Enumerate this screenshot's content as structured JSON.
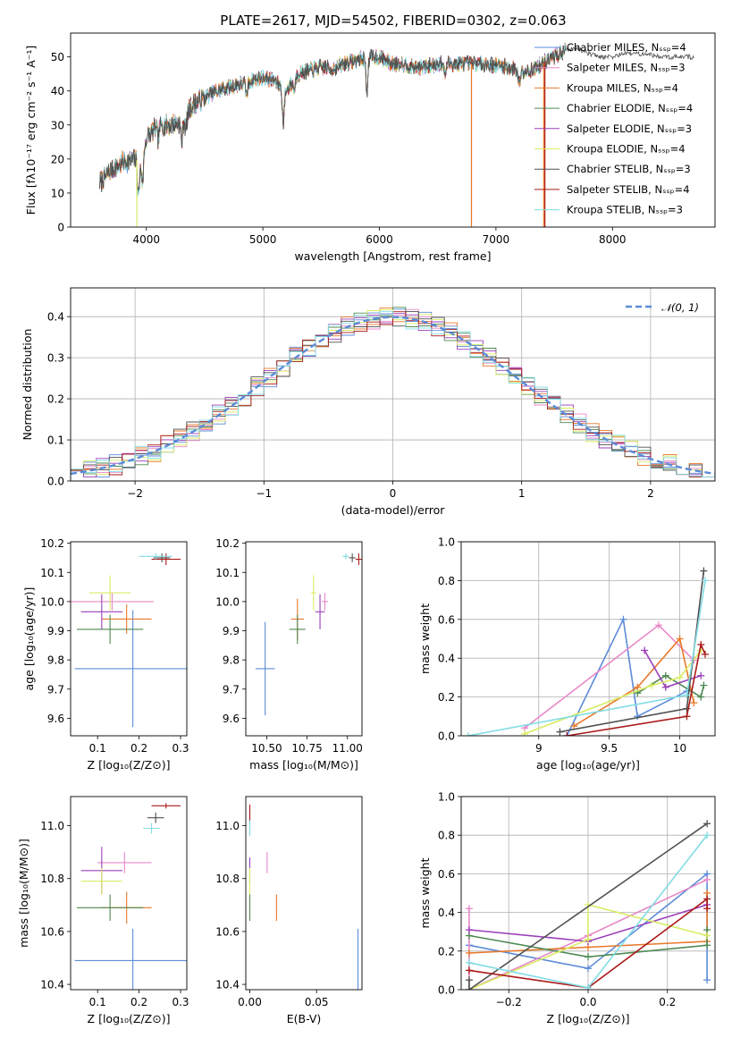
{
  "colors": [
    "#5b8bd8",
    "#e888c8",
    "#e8782a",
    "#4e8a52",
    "#9a3fb8",
    "#d9ec62",
    "#505050",
    "#aa1a1a",
    "#82dce4"
  ],
  "chart_data": [
    {
      "id": "spectrum",
      "type": "line",
      "title": "PLATE=2617, MJD=54502, FIBERID=0302, z=0.063",
      "xlabel": "wavelength [Angstrom, rest frame]",
      "ylabel": "Flux [fλ10⁻¹⁷ erg cm⁻² s⁻¹ A⁻¹]",
      "xlim": [
        3350,
        8880
      ],
      "ylim": [
        0,
        57
      ],
      "xticks": [
        4000,
        5000,
        6000,
        7000,
        8000
      ],
      "yticks": [
        0,
        10,
        20,
        30,
        40,
        50
      ],
      "grid": false,
      "legend_position": "top-right",
      "legend": [
        "Chabrier MILES, Nₛₛₚ=4",
        "Salpeter MILES, Nₛₛₚ=3",
        "Kroupa MILES, Nₛₛₚ=4",
        "Chabrier ELODIE, Nₛₛₚ=4",
        "Salpeter ELODIE, Nₛₛₚ=3",
        "Kroupa ELODIE, Nₛₛₚ=4",
        "Chabrier STELIB, Nₛₛₚ=3",
        "Salpeter STELIB, Nₛₛₚ=4",
        "Kroupa STELIB, Nₛₛₚ=3"
      ],
      "continuum": {
        "x": [
          3600,
          3700,
          3800,
          3900,
          3950,
          4000,
          4100,
          4200,
          4300,
          4400,
          4500,
          4600,
          4700,
          4800,
          4900,
          5000,
          5100,
          5200,
          5300,
          5400,
          5500,
          5600,
          5700,
          5800,
          5900,
          6000,
          6100,
          6200,
          6300,
          6400,
          6500,
          6600,
          6700,
          6800,
          6900,
          7000,
          7100,
          7200,
          7300,
          7400,
          7500,
          7600,
          7700,
          7800,
          7900,
          8000,
          8100,
          8200,
          8300,
          8400,
          8500,
          8600,
          8700
        ],
        "y": [
          13,
          17,
          19,
          20,
          19,
          26,
          30,
          30,
          31,
          36,
          38,
          40,
          41,
          42,
          43,
          44,
          43,
          40,
          45,
          46,
          47,
          46.5,
          48,
          49,
          50,
          50,
          48,
          48,
          47,
          47,
          48,
          48,
          48,
          48,
          48,
          47.5,
          47,
          46,
          46,
          48,
          50,
          52,
          52.5,
          51,
          50,
          50,
          51,
          51,
          51,
          50,
          50,
          50,
          50
        ]
      },
      "absorption_lines": [
        {
          "x": 3933,
          "depth": 10
        },
        {
          "x": 3968,
          "depth": 8
        },
        {
          "x": 4102,
          "depth": 4
        },
        {
          "x": 4304,
          "depth": 6
        },
        {
          "x": 4340,
          "depth": 4
        },
        {
          "x": 4861,
          "depth": 4
        },
        {
          "x": 5175,
          "depth": 10
        },
        {
          "x": 5270,
          "depth": 3
        },
        {
          "x": 5893,
          "depth": 10
        },
        {
          "x": 6563,
          "depth": 3
        },
        {
          "x": 7200,
          "depth": 4
        }
      ],
      "spikes_to_zero": [
        {
          "x": 3918,
          "series": 5
        },
        {
          "x": 6790,
          "series": 2
        },
        {
          "x": 7410,
          "series": 2
        },
        {
          "x": 7420,
          "series": 7
        }
      ],
      "extension": {
        "series": 6,
        "from": 7600,
        "to": 8700
      }
    },
    {
      "id": "residuals",
      "type": "step-histogram",
      "xlabel": "(data-model)/error",
      "ylabel": "Normed distribution",
      "xlim": [
        -2.5,
        2.5
      ],
      "ylim": [
        0,
        0.47
      ],
      "xticks": [
        -2,
        -1,
        0,
        1,
        2
      ],
      "yticks": [
        0.0,
        0.1,
        0.2,
        0.3,
        0.4
      ],
      "grid": true,
      "legend_position": "top-right",
      "legend": [
        "𝒩(0, 1)"
      ],
      "bin_width": 0.1,
      "gaussian": {
        "mean": 0,
        "sigma": 1
      }
    },
    {
      "id": "age-vs-Z",
      "type": "scatter-errorbars",
      "xlabel": "Z [log₁₀(Z/Z⊙)]",
      "ylabel": "age  [log₁₀(age/yr)]",
      "xlim": [
        0.035,
        0.315
      ],
      "ylim": [
        9.54,
        10.205
      ],
      "xticks": [
        0.1,
        0.2,
        0.3
      ],
      "yticks": [
        9.6,
        9.7,
        9.8,
        9.9,
        10.0,
        10.1,
        10.2
      ],
      "grid": false,
      "points": [
        {
          "x": 0.185,
          "xerr": 0.14,
          "y": 9.77,
          "yerr": 0.2
        },
        {
          "x": 0.135,
          "xerr": 0.1,
          "y": 10.0,
          "yerr": 0.03
        },
        {
          "x": 0.17,
          "xerr": 0.06,
          "y": 9.94,
          "yerr": 0.05
        },
        {
          "x": 0.13,
          "xerr": 0.08,
          "y": 9.905,
          "yerr": 0.05
        },
        {
          "x": 0.11,
          "xerr": 0.05,
          "y": 9.965,
          "yerr": 0.06
        },
        {
          "x": 0.13,
          "xerr": 0.05,
          "y": 10.03,
          "yerr": 0.06
        },
        {
          "x": 0.255,
          "xerr": 0.02,
          "y": 10.15,
          "yerr": 0.015
        },
        {
          "x": 0.265,
          "xerr": 0.035,
          "y": 10.145,
          "yerr": 0.02
        },
        {
          "x": 0.24,
          "xerr": 0.04,
          "y": 10.155,
          "yerr": 0.01
        }
      ]
    },
    {
      "id": "age-vs-mass",
      "type": "scatter-errorbars",
      "xlabel": "mass [log₁₀(M/M⊙)]",
      "ylabel": "",
      "xlim": [
        10.37,
        11.09
      ],
      "ylim": [
        9.54,
        10.205
      ],
      "xticks": [
        10.5,
        10.75,
        11.0
      ],
      "xtick_labels": [
        "10.50",
        "10.75",
        "11.00"
      ],
      "yticks": [
        9.6,
        9.7,
        9.8,
        9.9,
        10.0,
        10.1,
        10.2
      ],
      "grid": false,
      "points": [
        {
          "x": 10.49,
          "xerr": 0.06,
          "y": 9.77,
          "yerr": 0.16
        },
        {
          "x": 10.86,
          "xerr": 0.02,
          "y": 10.0,
          "yerr": 0.03
        },
        {
          "x": 10.69,
          "xerr": 0.04,
          "y": 9.94,
          "yerr": 0.07
        },
        {
          "x": 10.69,
          "xerr": 0.05,
          "y": 9.905,
          "yerr": 0.05
        },
        {
          "x": 10.83,
          "xerr": 0.03,
          "y": 9.965,
          "yerr": 0.06
        },
        {
          "x": 10.79,
          "xerr": 0.015,
          "y": 10.03,
          "yerr": 0.06
        },
        {
          "x": 11.03,
          "xerr": 0.02,
          "y": 10.15,
          "yerr": 0.015
        },
        {
          "x": 11.07,
          "xerr": 0.02,
          "y": 10.145,
          "yerr": 0.02
        },
        {
          "x": 10.99,
          "xerr": 0.02,
          "y": 10.155,
          "yerr": 0.01
        }
      ]
    },
    {
      "id": "weight-vs-age",
      "type": "line",
      "xlabel": "age  [log₁₀(age/yr)]",
      "ylabel": "mass weight",
      "xlim": [
        8.45,
        10.25
      ],
      "ylim": [
        0,
        1
      ],
      "xticks": [
        9.0,
        9.5,
        10.0
      ],
      "yticks": [
        0.0,
        0.2,
        0.4,
        0.6,
        0.8,
        1.0
      ],
      "grid": true,
      "series": [
        {
          "x": [
            9.2,
            9.6,
            9.7,
            10.05
          ],
          "y": [
            0.0,
            0.6,
            0.1,
            0.23
          ]
        },
        {
          "x": [
            8.9,
            9.85,
            10.1
          ],
          "y": [
            0.04,
            0.57,
            0.39
          ]
        },
        {
          "x": [
            9.25,
            9.7,
            10.0,
            10.1
          ],
          "y": [
            0.05,
            0.25,
            0.5,
            0.17
          ]
        },
        {
          "x": [
            9.7,
            9.9,
            10.15,
            10.17
          ],
          "y": [
            0.22,
            0.31,
            0.2,
            0.26
          ]
        },
        {
          "x": [
            9.75,
            9.9,
            10.15
          ],
          "y": [
            0.44,
            0.25,
            0.31
          ]
        },
        {
          "x": [
            8.9,
            9.8,
            10.0,
            10.15
          ],
          "y": [
            0.01,
            0.26,
            0.3,
            0.44
          ]
        },
        {
          "x": [
            9.15,
            10.05,
            10.17
          ],
          "y": [
            0.02,
            0.14,
            0.85
          ]
        },
        {
          "x": [
            9.2,
            10.05,
            10.15,
            10.18
          ],
          "y": [
            0.0,
            0.1,
            0.47,
            0.42
          ]
        },
        {
          "x": [
            8.5,
            10.05,
            10.18
          ],
          "y": [
            0.0,
            0.21,
            0.8
          ]
        }
      ]
    },
    {
      "id": "mass-vs-Z",
      "type": "scatter-errorbars",
      "xlabel": "Z [log₁₀(Z/Z⊙)]",
      "ylabel": "mass [log₁₀(M/M⊙)]",
      "xlim": [
        0.035,
        0.315
      ],
      "ylim": [
        10.38,
        11.11
      ],
      "xticks": [
        0.1,
        0.2,
        0.3
      ],
      "yticks": [
        10.4,
        10.6,
        10.8,
        11.0
      ],
      "grid": false,
      "points": [
        {
          "x": 0.185,
          "xerr": 0.14,
          "y": 10.49,
          "yerr": 0.12
        },
        {
          "x": 0.165,
          "xerr": 0.065,
          "y": 10.86,
          "yerr": 0.04
        },
        {
          "x": 0.17,
          "xerr": 0.06,
          "y": 10.69,
          "yerr": 0.06
        },
        {
          "x": 0.13,
          "xerr": 0.08,
          "y": 10.69,
          "yerr": 0.05
        },
        {
          "x": 0.11,
          "xerr": 0.05,
          "y": 10.83,
          "yerr": 0.09
        },
        {
          "x": 0.11,
          "xerr": 0.05,
          "y": 10.79,
          "yerr": 0.05
        },
        {
          "x": 0.24,
          "xerr": 0.02,
          "y": 11.03,
          "yerr": 0.02
        },
        {
          "x": 0.265,
          "xerr": 0.035,
          "y": 11.075,
          "yerr": 0.01
        },
        {
          "x": 0.23,
          "xerr": 0.02,
          "y": 10.99,
          "yerr": 0.02
        }
      ]
    },
    {
      "id": "mass-vs-ebv",
      "type": "scatter-errorbars",
      "xlabel": "E(B-V)",
      "ylabel": "",
      "xlim": [
        -0.003,
        0.084
      ],
      "ylim": [
        10.38,
        11.11
      ],
      "xticks": [
        0.0,
        0.05
      ],
      "xtick_labels": [
        "0.00",
        "0.05"
      ],
      "yticks": [
        10.4,
        10.6,
        10.8,
        11.0
      ],
      "grid": false,
      "points": [
        {
          "x": 0.081,
          "xerr": 0,
          "y": 10.49,
          "yerr": 0.12
        },
        {
          "x": 0.013,
          "xerr": 0,
          "y": 10.86,
          "yerr": 0.04
        },
        {
          "x": 0.02,
          "xerr": 0,
          "y": 10.69,
          "yerr": 0.05
        },
        {
          "x": 0.0,
          "xerr": 0,
          "y": 10.69,
          "yerr": 0.05
        },
        {
          "x": 0.0,
          "xerr": 0,
          "y": 10.83,
          "yerr": 0.05
        },
        {
          "x": 0.0,
          "xerr": 0,
          "y": 10.79,
          "yerr": 0.05
        },
        {
          "x": 0.0,
          "xerr": 0,
          "y": 11.03,
          "yerr": 0.03
        },
        {
          "x": 0.0,
          "xerr": 0,
          "y": 11.05,
          "yerr": 0.03
        },
        {
          "x": 0.0,
          "xerr": 0,
          "y": 10.99,
          "yerr": 0.03
        }
      ]
    },
    {
      "id": "weight-vs-Z",
      "type": "line",
      "xlabel": "Z [log₁₀(Z/Z⊙)]",
      "ylabel": "mass weight",
      "xlim": [
        -0.32,
        0.32
      ],
      "ylim": [
        0,
        1
      ],
      "xticks": [
        -0.2,
        0.0,
        0.2
      ],
      "xtick_labels": [
        "−0.2",
        "0.0",
        "0.2"
      ],
      "yticks": [
        0.0,
        0.2,
        0.4,
        0.6,
        0.8,
        1.0
      ],
      "grid": true,
      "series": [
        {
          "x": [
            -0.3,
            0.0,
            0.3,
            0.3
          ],
          "y": [
            0.23,
            0.11,
            0.6,
            0.05
          ]
        },
        {
          "x": [
            -0.3,
            -0.3,
            0.0,
            0.3
          ],
          "y": [
            0.42,
            0.0,
            0.28,
            0.57
          ]
        },
        {
          "x": [
            -0.3,
            0.0,
            0.3,
            0.3
          ],
          "y": [
            0.19,
            0.22,
            0.25,
            0.5
          ]
        },
        {
          "x": [
            -0.3,
            0.0,
            0.3,
            0.3
          ],
          "y": [
            0.28,
            0.17,
            0.23,
            0.31
          ]
        },
        {
          "x": [
            -0.3,
            0.0,
            0.3
          ],
          "y": [
            0.31,
            0.25,
            0.44
          ]
        },
        {
          "x": [
            -0.3,
            0.0,
            0.0,
            0.3
          ],
          "y": [
            0.0,
            0.26,
            0.44,
            0.28
          ]
        },
        {
          "x": [
            -0.3,
            -0.3,
            0.3
          ],
          "y": [
            0.05,
            0.0,
            0.86
          ]
        },
        {
          "x": [
            -0.3,
            0.0,
            0.3,
            0.3
          ],
          "y": [
            0.1,
            0.01,
            0.47,
            0.42
          ]
        },
        {
          "x": [
            -0.3,
            0.0,
            0.3
          ],
          "y": [
            0.14,
            0.01,
            0.8
          ]
        }
      ]
    }
  ]
}
